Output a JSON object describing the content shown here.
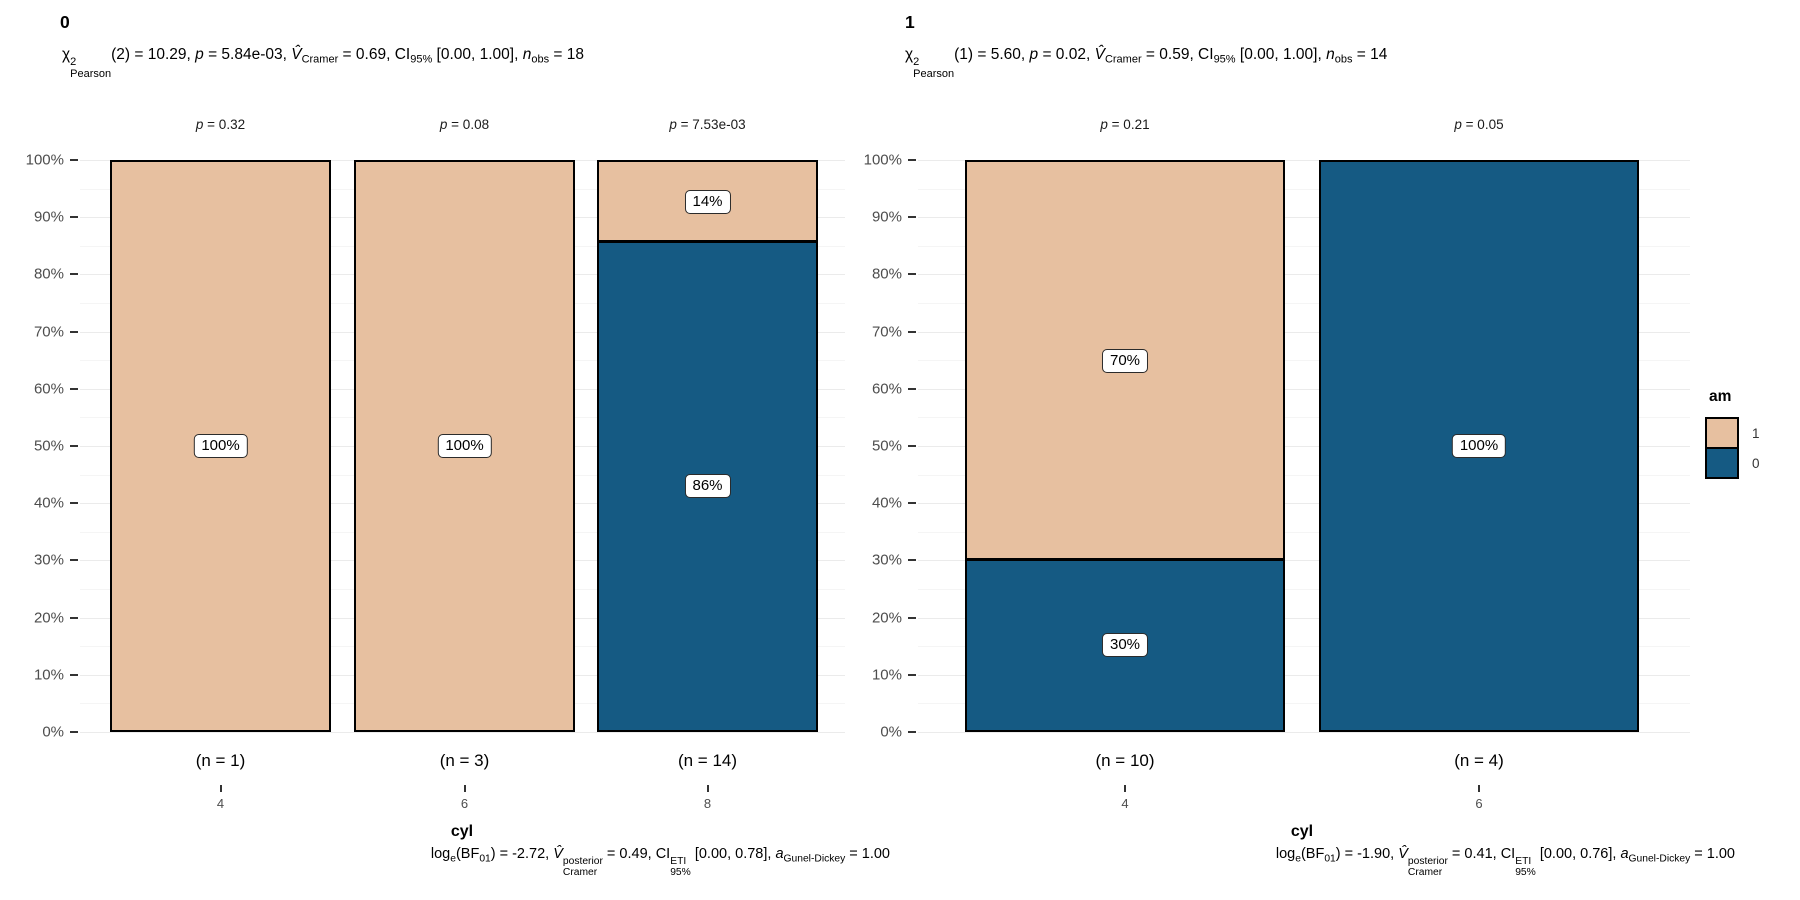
{
  "figure": {
    "background": "#FFFFFF"
  },
  "chart_data": {
    "type": "bar",
    "subtype": "stacked-percent",
    "ylim": [
      0,
      100
    ],
    "grid": "major+minor",
    "y_tick_labels": [
      "0%",
      "10%",
      "20%",
      "30%",
      "40%",
      "50%",
      "60%",
      "70%",
      "80%",
      "90%",
      "100%"
    ],
    "legend": {
      "title": "am",
      "position": "right",
      "entries": [
        {
          "label": "1",
          "color": "#E7C0A0"
        },
        {
          "label": "0",
          "color": "#155A83"
        }
      ]
    },
    "panels": [
      {
        "facet": "0",
        "xlabel": "cyl",
        "categories": [
          "4",
          "6",
          "8"
        ],
        "counts": [
          "(n = 1)",
          "(n = 3)",
          "(n = 14)"
        ],
        "pairwise_p": [
          "p = 0.32",
          "p = 0.08",
          "p = 7.53e-03"
        ],
        "stacks": [
          [
            {
              "am": "1",
              "percent": 100,
              "label": "100%"
            }
          ],
          [
            {
              "am": "1",
              "percent": 100,
              "label": "100%"
            }
          ],
          [
            {
              "am": "1",
              "percent": 14,
              "label": "14%"
            },
            {
              "am": "0",
              "percent": 86,
              "label": "86%"
            }
          ]
        ],
        "subtitle_text": "χ²Pearson(2) = 10.29, p = 5.84e-03, V̂Cramer = 0.69, CI95% [0.00, 1.00], nobs = 18",
        "subtitle": [
          {
            "t": "χ"
          },
          {
            "ss": [
              "2",
              "Pearson"
            ]
          },
          {
            "t": "(2) = 10.29, "
          },
          {
            "t": "p",
            "s": "i"
          },
          {
            "t": " = 5.84e-03, "
          },
          {
            "t": "V̂",
            "s": "i"
          },
          {
            "t": "Cramer",
            "s": "sub"
          },
          {
            "t": " = 0.69, CI"
          },
          {
            "t": "95%",
            "s": "sub"
          },
          {
            "t": " [0.00, 1.00], "
          },
          {
            "t": "n",
            "s": "i"
          },
          {
            "t": "obs",
            "s": "sub"
          },
          {
            "t": " = 18"
          }
        ],
        "caption_text": "loge(BF01) = -2.72, V̂posteriorCramer = 0.49, CIETI95% [0.00, 0.78], aGunel-Dickey = 1.00",
        "caption": [
          {
            "t": "log"
          },
          {
            "t": "e",
            "s": "sub"
          },
          {
            "t": "(BF"
          },
          {
            "t": "01",
            "s": "sub"
          },
          {
            "t": ") = -2.72, "
          },
          {
            "t": "V̂",
            "s": "i"
          },
          {
            "ss": [
              "posterior",
              "Cramer"
            ]
          },
          {
            "t": " = 0.49, CI"
          },
          {
            "ss": [
              "ETI",
              "95%"
            ]
          },
          {
            "t": " [0.00, 0.78], "
          },
          {
            "t": "a",
            "s": "i"
          },
          {
            "t": "Gunel-Dickey",
            "s": "sub"
          },
          {
            "t": " = 1.00"
          }
        ]
      },
      {
        "facet": "1",
        "xlabel": "cyl",
        "categories": [
          "4",
          "6"
        ],
        "counts": [
          "(n = 10)",
          "(n = 4)"
        ],
        "pairwise_p": [
          "p = 0.21",
          "p = 0.05"
        ],
        "stacks": [
          [
            {
              "am": "1",
              "percent": 70,
              "label": "70%"
            },
            {
              "am": "0",
              "percent": 30,
              "label": "30%"
            }
          ],
          [
            {
              "am": "0",
              "percent": 100,
              "label": "100%"
            }
          ]
        ],
        "subtitle_text": "χ²Pearson(1) = 5.60, p = 0.02, V̂Cramer = 0.59, CI95% [0.00, 1.00], nobs = 14",
        "subtitle": [
          {
            "t": "χ"
          },
          {
            "ss": [
              "2",
              "Pearson"
            ]
          },
          {
            "t": "(1) = 5.60, "
          },
          {
            "t": "p",
            "s": "i"
          },
          {
            "t": " = 0.02, "
          },
          {
            "t": "V̂",
            "s": "i"
          },
          {
            "t": "Cramer",
            "s": "sub"
          },
          {
            "t": " = 0.59, CI"
          },
          {
            "t": "95%",
            "s": "sub"
          },
          {
            "t": " [0.00, 1.00], "
          },
          {
            "t": "n",
            "s": "i"
          },
          {
            "t": "obs",
            "s": "sub"
          },
          {
            "t": " = 14"
          }
        ],
        "caption_text": "loge(BF01) = -1.90, V̂posteriorCramer = 0.41, CIETI95% [0.00, 0.76], aGunel-Dickey = 1.00",
        "caption": [
          {
            "t": "log"
          },
          {
            "t": "e",
            "s": "sub"
          },
          {
            "t": "(BF"
          },
          {
            "t": "01",
            "s": "sub"
          },
          {
            "t": ") = -1.90, "
          },
          {
            "t": "V̂",
            "s": "i"
          },
          {
            "ss": [
              "posterior",
              "Cramer"
            ]
          },
          {
            "t": " = 0.41, CI"
          },
          {
            "ss": [
              "ETI",
              "95%"
            ]
          },
          {
            "t": " [0.00, 0.76], "
          },
          {
            "t": "a",
            "s": "i"
          },
          {
            "t": "Gunel-Dickey",
            "s": "sub"
          },
          {
            "t": " = 1.00"
          }
        ]
      }
    ]
  }
}
